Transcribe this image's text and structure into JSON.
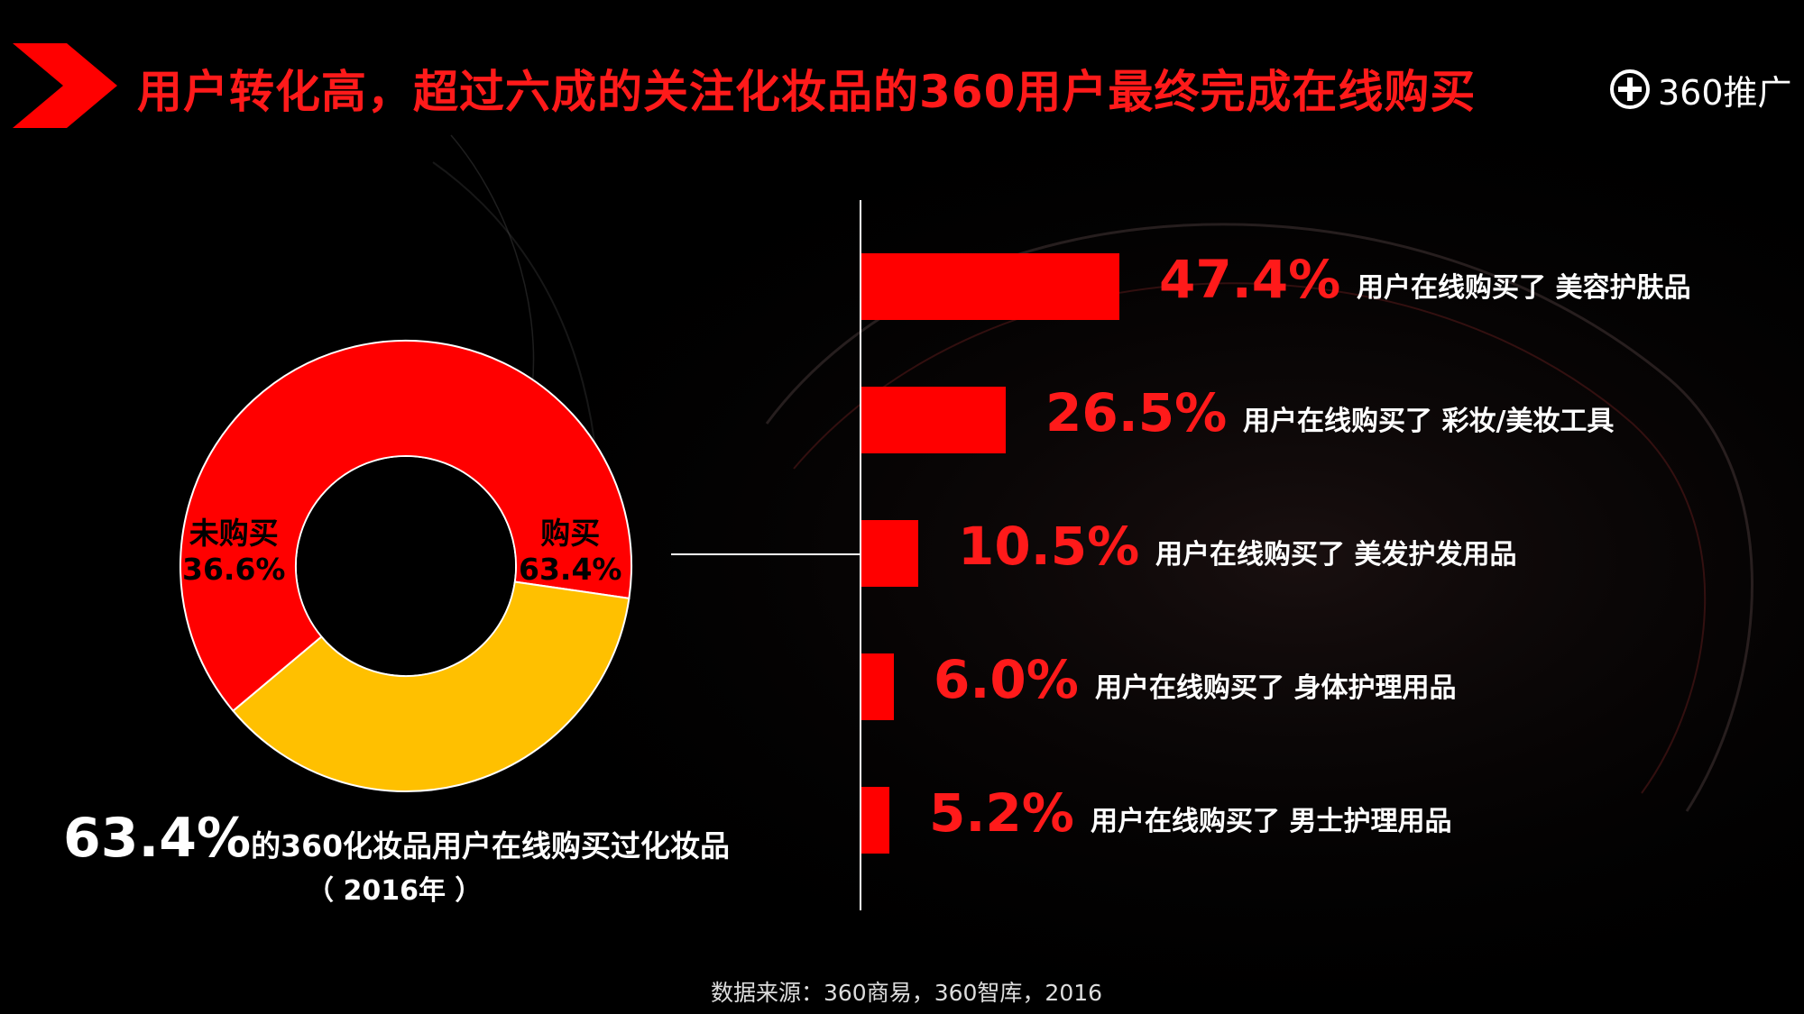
{
  "header": {
    "title": "用户转化高，超过六成的关注化妆品的360用户最终完成在线购买",
    "brand_icon": "plus-circle-icon",
    "brand_text": "360推广",
    "accent": "#ff0000"
  },
  "chart_data": [
    {
      "type": "pie",
      "subtype": "donut",
      "slices": [
        {
          "label": "购买",
          "value": 63.4,
          "display": "63.4%",
          "color": "#ff0000"
        },
        {
          "label": "未购买",
          "value": 36.6,
          "display": "36.6%",
          "color": "#ffc000"
        }
      ]
    },
    {
      "type": "bar",
      "orientation": "horizontal",
      "categories": [
        "用户在线购买了 美容护肤品",
        "用户在线购买了 彩妆/美妆工具",
        "用户在线购买了 美发护发用品",
        "用户在线购买了 身体护理用品",
        "用户在线购买了 男士护理用品"
      ],
      "values": [
        47.4,
        26.5,
        10.5,
        6.0,
        5.2
      ],
      "value_labels": [
        "47.4%",
        "26.5%",
        "10.5%",
        "6.0%",
        "5.2%"
      ],
      "color": "#ff0000"
    }
  ],
  "summary": {
    "big": "63.4%",
    "rest": "的360化妆品用户在线购买过化妆品",
    "year": "（ 2016年 ）"
  },
  "source": "数据来源：360商易，360智库，2016"
}
